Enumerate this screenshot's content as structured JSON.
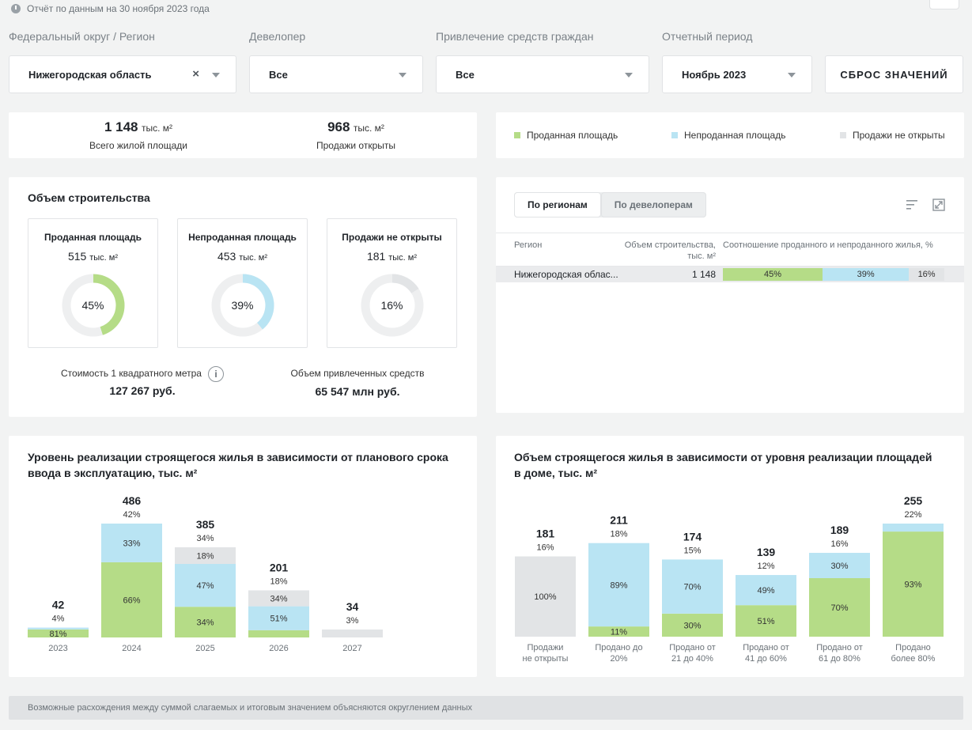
{
  "report_date": "Отчёт по данным на 30 ноября 2023 года",
  "filters": {
    "region": {
      "label": "Федеральный округ / Регион",
      "value": "Нижегородская область",
      "clear": "×"
    },
    "developer": {
      "label": "Девелопер",
      "value": "Все"
    },
    "funding": {
      "label": "Привлечение средств граждан",
      "value": "Все"
    },
    "period": {
      "label": "Отчетный период",
      "value": "Ноябрь 2023"
    },
    "reset": "СБРОС ЗНАЧЕНИЙ"
  },
  "summary": {
    "total": {
      "value": "1 148",
      "unit": "тыс. м²",
      "label": "Всего жилой площади"
    },
    "open": {
      "value": "968",
      "unit": "тыс. м²",
      "label": "Продажи открыты"
    }
  },
  "legend": {
    "sold": "Проданная площадь",
    "unsold": "Непроданная площадь",
    "closed": "Продажи не открыты"
  },
  "colors": {
    "sold": "#b5dc87",
    "unsold": "#b9e4f3",
    "closed": "#e2e4e6"
  },
  "volume": {
    "title": "Объем строительства",
    "cards": [
      {
        "title": "Проданная площадь",
        "value": "515",
        "unit": "тыс. м²",
        "pct": "45%",
        "frac": 0.45,
        "color": "#b5dc87"
      },
      {
        "title": "Непроданная площадь",
        "value": "453",
        "unit": "тыс. м²",
        "pct": "39%",
        "frac": 0.39,
        "color": "#b9e4f3"
      },
      {
        "title": "Продажи не открыты",
        "value": "181",
        "unit": "тыс. м²",
        "pct": "16%",
        "frac": 0.16,
        "color": "#e2e4e6"
      }
    ],
    "price_label": "Стоимость 1 квадратного метра",
    "price_value": "127 267 руб.",
    "funds_label": "Объем привлеченных средств",
    "funds_value": "65 547 млн руб."
  },
  "table": {
    "tabs": [
      "По регионам",
      "По девелоперам"
    ],
    "headers": {
      "region": "Регион",
      "volume": "Объем строительства,",
      "volume_unit": "тыс. м²",
      "ratio": "Соотношение проданного и непроданного жилья, %"
    },
    "rows": [
      {
        "region": "Нижегородская облас...",
        "volume": "1 148",
        "sold": "45%",
        "unsold": "39%",
        "closed": "16%",
        "sold_frac": 0.45,
        "unsold_frac": 0.39,
        "closed_frac": 0.16
      }
    ]
  },
  "chart_left": {
    "title": "Уровень реализации строящегося жилья в зависимости от планового срока ввода в эксплуатацию, тыс. м²",
    "chart_data": {
      "type": "bar",
      "stacked": true,
      "categories": [
        "2023",
        "2024",
        "2025",
        "2026",
        "2027"
      ],
      "totals": [
        42,
        486,
        385,
        201,
        34
      ],
      "total_labels": [
        "42",
        "486",
        "385",
        "201",
        "34"
      ],
      "share_labels": [
        "4%",
        "42%",
        "34%",
        "18%",
        "3%"
      ],
      "series": [
        {
          "name": "Проданная площадь",
          "values": [
            34,
            321,
            131,
            31,
            0
          ],
          "labels": [
            "81%",
            "66%",
            "34%",
            "",
            ""
          ]
        },
        {
          "name": "Непроданная площадь",
          "values": [
            8,
            165,
            183,
            102,
            0
          ],
          "labels": [
            "",
            "33%",
            "47%",
            "51%",
            ""
          ]
        },
        {
          "name": "Продажи не открыты",
          "values": [
            0,
            0,
            71,
            68,
            34
          ],
          "labels": [
            "",
            "",
            "18%",
            "34%",
            ""
          ]
        }
      ]
    }
  },
  "chart_right": {
    "title": "Объем строящегося жилья в зависимости от уровня реализации площадей в доме, тыс. м²",
    "chart_data": {
      "type": "bar",
      "stacked": true,
      "categories": [
        [
          "Продажи",
          "не открыты"
        ],
        [
          "Продано до",
          "20%"
        ],
        [
          "Продано от",
          "21 до 40%"
        ],
        [
          "Продано от",
          "41 до 60%"
        ],
        [
          "Продано от",
          "61 до 80%"
        ],
        [
          "Продано",
          "более 80%"
        ]
      ],
      "totals": [
        181,
        211,
        174,
        139,
        189,
        255
      ],
      "total_labels": [
        "181",
        "211",
        "174",
        "139",
        "189",
        "255"
      ],
      "share_labels": [
        "16%",
        "18%",
        "15%",
        "12%",
        "16%",
        "22%"
      ],
      "series": [
        {
          "name": "Проданная площадь",
          "values": [
            0,
            23,
            52,
            71,
            132,
            237
          ],
          "labels": [
            "",
            "11%",
            "30%",
            "51%",
            "70%",
            "93%"
          ]
        },
        {
          "name": "Непроданная площадь",
          "values": [
            0,
            188,
            122,
            68,
            57,
            18
          ],
          "labels": [
            "",
            "89%",
            "70%",
            "49%",
            "30%",
            ""
          ]
        },
        {
          "name": "Продажи не открыты",
          "values": [
            181,
            0,
            0,
            0,
            0,
            0
          ],
          "labels": [
            "100%",
            "",
            "",
            "",
            "",
            ""
          ]
        }
      ]
    }
  },
  "footnote": "Возможные расхождения между суммой слагаемых и итоговым значением объясняются округлением данных"
}
